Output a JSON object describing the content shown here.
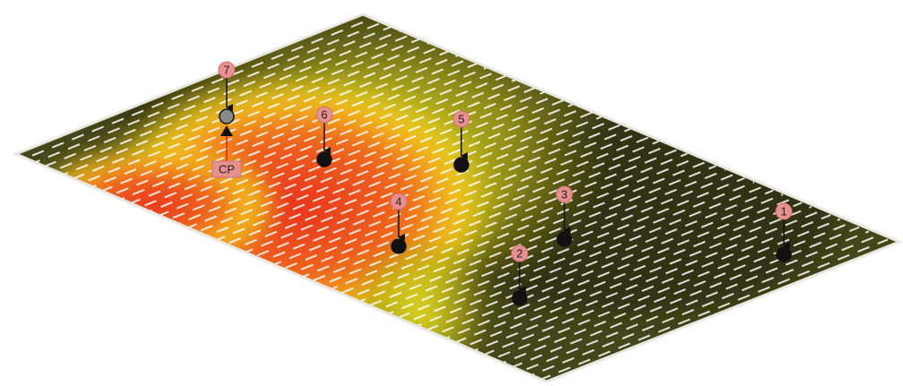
{
  "points": [
    {
      "label": "1"
    },
    {
      "label": "2"
    },
    {
      "label": "3"
    },
    {
      "label": "4"
    },
    {
      "label": "5"
    },
    {
      "label": "6"
    },
    {
      "label": "7"
    }
  ],
  "control_point": {
    "label": "CP"
  }
}
